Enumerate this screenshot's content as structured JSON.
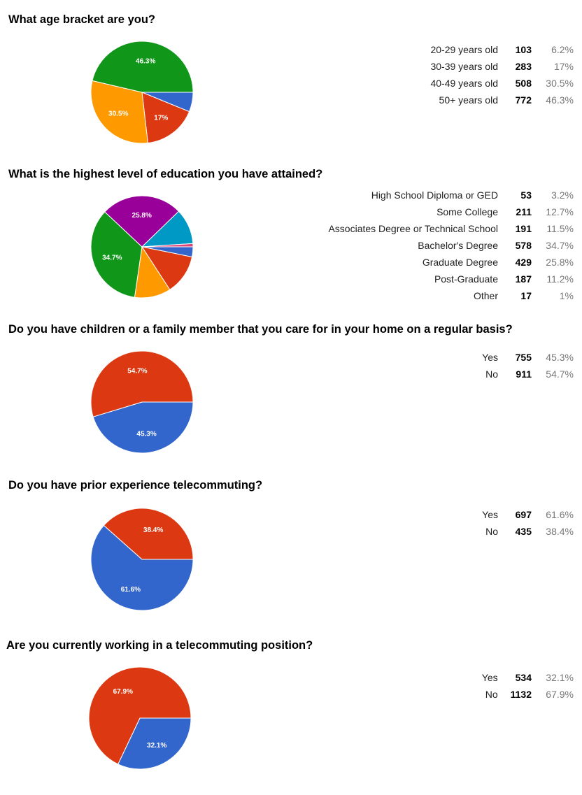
{
  "questions": [
    {
      "title": "What age bracket are you?",
      "chart_data": {
        "type": "pie",
        "title": "What age bracket are you?",
        "categories": [
          "20-29 years old",
          "30-39 years old",
          "40-49 years old",
          "50+ years old"
        ],
        "values": [
          103,
          283,
          508,
          772
        ],
        "percent_labels": [
          "6.2%",
          "17%",
          "30.5%",
          "46.3%"
        ],
        "colors": [
          "#3366cc",
          "#dc3912",
          "#ff9900",
          "#109618"
        ]
      }
    },
    {
      "title": "What is the highest level of education you have attained?",
      "chart_data": {
        "type": "pie",
        "title": "What is the highest level of education you have attained?",
        "categories": [
          "High School Diploma or GED",
          "Some College",
          "Associates Degree or Technical School",
          "Bachelor's Degree",
          "Graduate Degree",
          "Post-Graduate",
          "Other"
        ],
        "values": [
          53,
          211,
          191,
          578,
          429,
          187,
          17
        ],
        "percent_labels": [
          "3.2%",
          "12.7%",
          "11.5%",
          "34.7%",
          "25.8%",
          "11.2%",
          "1%"
        ],
        "colors": [
          "#3366cc",
          "#dc3912",
          "#ff9900",
          "#109618",
          "#990099",
          "#0099c6",
          "#dd4477"
        ]
      }
    },
    {
      "title": "Do you have children or a family member that you care for in your home on a regular basis?",
      "chart_data": {
        "type": "pie",
        "title": "Do you have children or a family member that you care for in your home on a regular basis?",
        "categories": [
          "Yes",
          "No"
        ],
        "values": [
          755,
          911
        ],
        "percent_labels": [
          "45.3%",
          "54.7%"
        ],
        "colors": [
          "#3366cc",
          "#dc3912"
        ]
      }
    },
    {
      "title": "Do you have prior experience telecommuting?",
      "chart_data": {
        "type": "pie",
        "title": "Do you have prior experience telecommuting?",
        "categories": [
          "Yes",
          "No"
        ],
        "values": [
          697,
          435
        ],
        "percent_labels": [
          "61.6%",
          "38.4%"
        ],
        "colors": [
          "#3366cc",
          "#dc3912"
        ]
      }
    },
    {
      "title": "Are you currently working in a telecommuting position?",
      "chart_data": {
        "type": "pie",
        "title": "Are you currently working in a telecommuting position?",
        "categories": [
          "Yes",
          "No"
        ],
        "values": [
          534,
          1132
        ],
        "percent_labels": [
          "32.1%",
          "67.9%"
        ],
        "colors": [
          "#3366cc",
          "#dc3912"
        ]
      }
    }
  ]
}
